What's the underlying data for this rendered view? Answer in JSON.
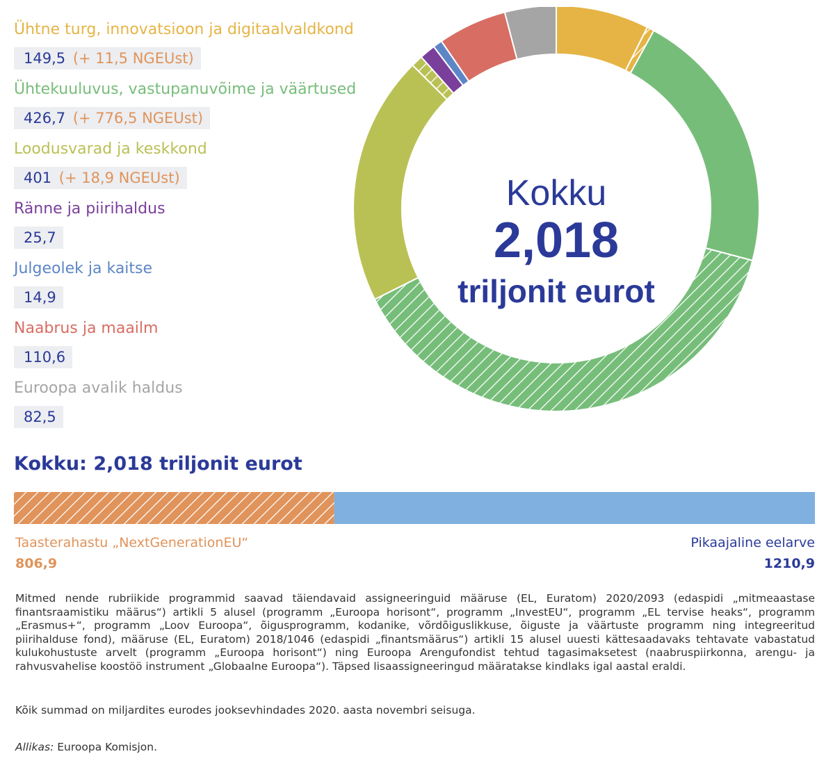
{
  "chart_data": [
    {
      "type": "pie",
      "title": "",
      "center_text": {
        "line1": "Kokku",
        "line2": "2,018",
        "line3": "triljonit eurot"
      },
      "series": [
        {
          "name": "Ühtne turg, innovatsioon ja digitaalvaldkond",
          "value": 149.5,
          "ngeu": 11.5,
          "value_text": "149,5",
          "ngeu_text": "(+ 11,5 NGEUst)",
          "color": "#e6b445"
        },
        {
          "name": "Ühtekuuluvus, vastupanuvõime ja väärtused",
          "value": 426.7,
          "ngeu": 776.5,
          "value_text": "426,7",
          "ngeu_text": "(+ 776,5 NGEUst)",
          "color": "#77bd7a"
        },
        {
          "name": "Loodusvarad ja keskkond",
          "value": 401,
          "ngeu": 18.9,
          "value_text": "401",
          "ngeu_text": "(+ 18,9 NGEUst)",
          "color": "#b9c155"
        },
        {
          "name": "Ränne ja piirihaldus",
          "value": 25.7,
          "ngeu": 0,
          "value_text": "25,7",
          "ngeu_text": "",
          "color": "#7a3f9b"
        },
        {
          "name": "Julgeolek ja kaitse",
          "value": 14.9,
          "ngeu": 0,
          "value_text": "14,9",
          "ngeu_text": "",
          "color": "#5d86c6"
        },
        {
          "name": "Naabrus ja maailm",
          "value": 110.6,
          "ngeu": 0,
          "value_text": "110,6",
          "ngeu_text": "",
          "color": "#d86d63"
        },
        {
          "name": "Euroopa avalik haldus",
          "value": 82.5,
          "ngeu": 0,
          "value_text": "82,5",
          "ngeu_text": "",
          "color": "#a5a5a5"
        }
      ],
      "legend_position": "left"
    },
    {
      "type": "bar",
      "title": "Kokku: 2,018 triljonit eurot",
      "orientation": "horizontal-stacked",
      "series": [
        {
          "name": "Taasterahastu „NextGenerationEU“",
          "value": 806.9,
          "value_text": "806,9",
          "color": "#e0935a",
          "hatched": true
        },
        {
          "name": "Pikaajaline eelarve",
          "value": 1210.9,
          "value_text": "1210,9",
          "color": "#7fb0df",
          "hatched": false
        }
      ]
    }
  ],
  "text": {
    "footnote": "Mitmed nende rubriikide programmid saavad täiendavaid assigneeringuid määruse (EL, Euratom) 2020/2093 (edaspidi „mitmeaastase finantsraamistiku määrus“) artikli 5 alusel (programm „Euroopa horisont“, programm „InvestEU“, programm „EL tervise heaks“, programm „Erasmus+“, programm „Loov Euroopa“, õigusprogramm, kodanike, võrdõiguslikkuse, õiguste ja väärtuste programm ning integreeritud piirihalduse fond), määruse (EL, Euratom) 2018/1046 (edaspidi „finantsmäärus“) artikli 15 alusel uuesti kättesaadavaks tehtavate vabastatud kulukohustuste arvelt (programm „Euroopa horisont“) ning Euroopa Arengufondist tehtud tagasimaksetest (naabruspiirkonna, arengu- ja rahvusvahelise koostöö instrument „Globaalne Euroopa“). Täpsed lisaassigneeringud määratakse kindlaks igal aastal eraldi.",
    "note": "Kõik summad on miljardites eurodes jooksevhindades 2020. aasta novembri seisuga.",
    "source_label": "Allikas:",
    "source_value": "Euroopa Komisjon."
  },
  "colors": {
    "accent": "#2b3a98",
    "ngeu": "#e0935a",
    "long_term": "#7fb0df",
    "value_box": "#eceef1"
  }
}
